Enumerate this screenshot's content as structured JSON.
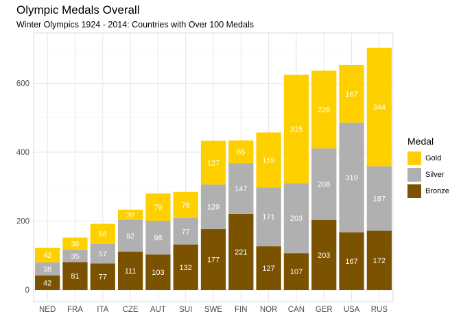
{
  "chart_data": {
    "type": "bar",
    "stacked": true,
    "title": "Olympic Medals Overall",
    "subtitle": "Winter Olympics 1924 - 2014: Countries with Over 100 Medals",
    "categories": [
      "NED",
      "FRA",
      "ITA",
      "CZE",
      "AUT",
      "SUI",
      "SWE",
      "FIN",
      "NOR",
      "CAN",
      "GER",
      "USA",
      "RUS"
    ],
    "series": [
      {
        "name": "Bronze",
        "color": "#7a5200",
        "values": [
          42,
          81,
          77,
          111,
          103,
          132,
          177,
          221,
          127,
          107,
          203,
          167,
          172
        ]
      },
      {
        "name": "Silver",
        "color": "#b0b0b0",
        "values": [
          38,
          35,
          57,
          92,
          98,
          77,
          129,
          147,
          171,
          203,
          208,
          319,
          187
        ]
      },
      {
        "name": "Gold",
        "color": "#ffd000",
        "values": [
          42,
          36,
          58,
          30,
          79,
          76,
          127,
          66,
          159,
          315,
          226,
          167,
          344
        ]
      }
    ],
    "ylim": [
      0,
      740
    ],
    "yticks": [
      0,
      200,
      400,
      600
    ],
    "grid": true,
    "legend": {
      "title": "Medal",
      "position": "right",
      "items": [
        "Gold",
        "Silver",
        "Bronze"
      ]
    }
  }
}
